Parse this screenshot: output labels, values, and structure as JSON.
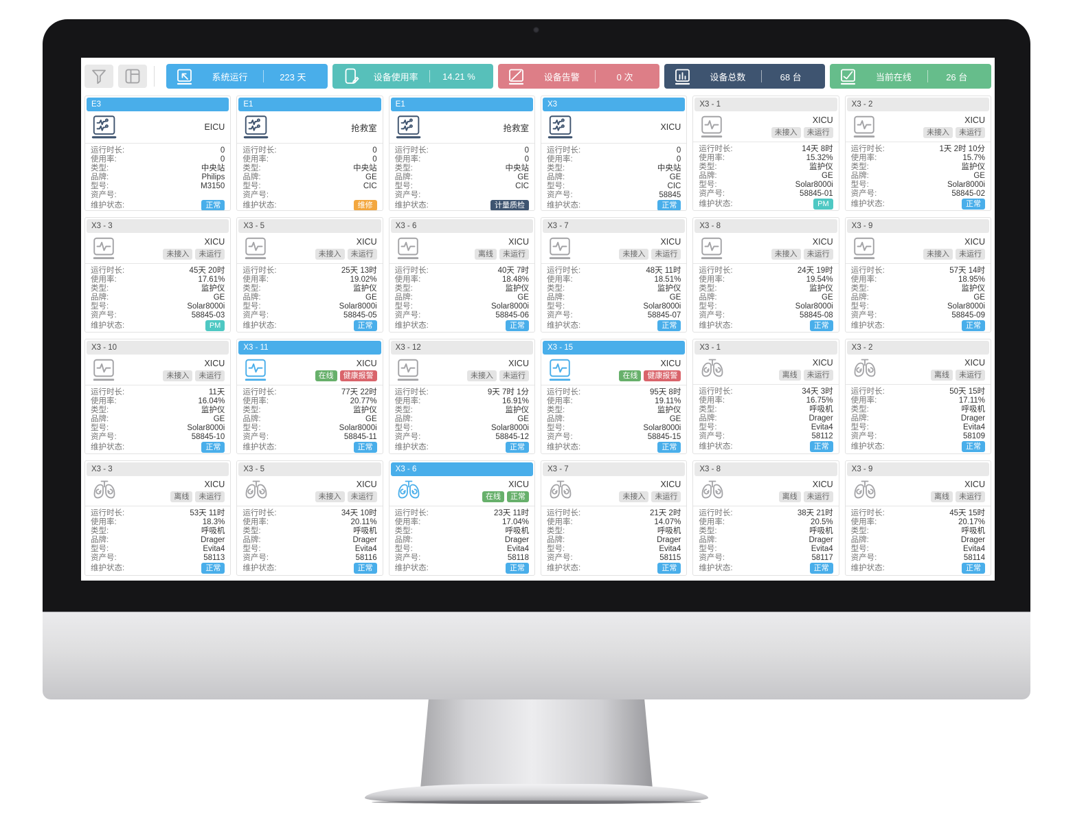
{
  "colors": {
    "accent_blue": "#49aeea",
    "stat_teal": "#57c0ba",
    "stat_red": "#dd7e87",
    "stat_navy": "#3e5470",
    "stat_green": "#66bd8b",
    "badge_green": "#67b06b",
    "badge_red": "#d9646b",
    "badge_grey": "#e4e4e4",
    "maint_blue": "#49aeea",
    "maint_teal": "#4ec8c3",
    "maint_orange": "#f3a73f",
    "maint_navy": "#3e5470"
  },
  "toolbar": {
    "left_buttons": [
      "filter-icon",
      "layout-grid-icon"
    ],
    "stats": [
      {
        "label": "系统运行",
        "value": "223 天",
        "color": "#49aeea",
        "icon": "monitor-cursor-icon"
      },
      {
        "label": "设备使用率",
        "value": "14.21 %",
        "color": "#57c0ba",
        "icon": "tablet-edit-icon"
      },
      {
        "label": "设备告警",
        "value": "0 次",
        "color": "#dd7e87",
        "icon": "monitor-slash-icon"
      },
      {
        "label": "设备总数",
        "value": "68 台",
        "color": "#3e5470",
        "icon": "monitor-bars-icon"
      },
      {
        "label": "当前在线",
        "value": "26 台",
        "color": "#66bd8b",
        "icon": "monitor-check-icon"
      }
    ]
  },
  "field_labels": {
    "runtime": "运行时长:",
    "usage": "使用率:",
    "type": "类型:",
    "brand": "品牌:",
    "model": "型号:",
    "asset": "资产号:",
    "maintenance": "维护状态:"
  },
  "cards": [
    {
      "id": "E3",
      "header_active": true,
      "location": "EICU",
      "device": "central",
      "icon_active": false,
      "status_badges": [],
      "runtime": "0",
      "usage": "0",
      "type": "中央站",
      "brand": "Philips",
      "model": "M3150",
      "asset": "",
      "maintenance": {
        "text": "正常",
        "style": "blue"
      }
    },
    {
      "id": "E1",
      "header_active": true,
      "location": "抢救室",
      "device": "central",
      "icon_active": false,
      "status_badges": [],
      "runtime": "0",
      "usage": "0",
      "type": "中央站",
      "brand": "GE",
      "model": "CIC",
      "asset": "",
      "maintenance": {
        "text": "维修",
        "style": "orange"
      }
    },
    {
      "id": "E1",
      "header_active": true,
      "location": "抢救室",
      "device": "central",
      "icon_active": false,
      "status_badges": [],
      "runtime": "0",
      "usage": "0",
      "type": "中央站",
      "brand": "GE",
      "model": "CIC",
      "asset": "",
      "maintenance": {
        "text": "计量质检",
        "style": "navy"
      }
    },
    {
      "id": "X3",
      "header_active": true,
      "location": "XICU",
      "device": "central",
      "icon_active": false,
      "status_badges": [],
      "runtime": "0",
      "usage": "0",
      "type": "中央站",
      "brand": "GE",
      "model": "CIC",
      "asset": "58845",
      "maintenance": {
        "text": "正常",
        "style": "blue"
      }
    },
    {
      "id": "X3 - 1",
      "header_active": false,
      "location": "XICU",
      "device": "monitor",
      "icon_active": false,
      "status_badges": [
        {
          "text": "未接入",
          "style": "grey"
        },
        {
          "text": "未运行",
          "style": "grey"
        }
      ],
      "runtime": "14天 8时",
      "usage": "15.32%",
      "type": "监护仪",
      "brand": "GE",
      "model": "Solar8000i",
      "asset": "58845-01",
      "maintenance": {
        "text": "PM",
        "style": "teal"
      }
    },
    {
      "id": "X3 - 2",
      "header_active": false,
      "location": "XICU",
      "device": "monitor",
      "icon_active": false,
      "status_badges": [
        {
          "text": "未接入",
          "style": "grey"
        },
        {
          "text": "未运行",
          "style": "grey"
        }
      ],
      "runtime": "1天 2时 10分",
      "usage": "15.7%",
      "type": "监护仪",
      "brand": "GE",
      "model": "Solar8000i",
      "asset": "58845-02",
      "maintenance": {
        "text": "正常",
        "style": "blue"
      }
    },
    {
      "id": "X3 - 3",
      "header_active": false,
      "location": "XICU",
      "device": "monitor",
      "icon_active": false,
      "status_badges": [
        {
          "text": "未接入",
          "style": "grey"
        },
        {
          "text": "未运行",
          "style": "grey"
        }
      ],
      "runtime": "45天 20时",
      "usage": "17.61%",
      "type": "监护仪",
      "brand": "GE",
      "model": "Solar8000i",
      "asset": "58845-03",
      "maintenance": {
        "text": "PM",
        "style": "teal"
      }
    },
    {
      "id": "X3 - 5",
      "header_active": false,
      "location": "XICU",
      "device": "monitor",
      "icon_active": false,
      "status_badges": [
        {
          "text": "未接入",
          "style": "grey"
        },
        {
          "text": "未运行",
          "style": "grey"
        }
      ],
      "runtime": "25天 13时",
      "usage": "19.02%",
      "type": "监护仪",
      "brand": "GE",
      "model": "Solar8000i",
      "asset": "58845-05",
      "maintenance": {
        "text": "正常",
        "style": "blue"
      }
    },
    {
      "id": "X3 - 6",
      "header_active": false,
      "location": "XICU",
      "device": "monitor",
      "icon_active": false,
      "status_badges": [
        {
          "text": "离线",
          "style": "grey"
        },
        {
          "text": "未运行",
          "style": "grey"
        }
      ],
      "runtime": "40天 7时",
      "usage": "18.48%",
      "type": "监护仪",
      "brand": "GE",
      "model": "Solar8000i",
      "asset": "58845-06",
      "maintenance": {
        "text": "正常",
        "style": "blue"
      }
    },
    {
      "id": "X3 - 7",
      "header_active": false,
      "location": "XICU",
      "device": "monitor",
      "icon_active": false,
      "status_badges": [
        {
          "text": "未接入",
          "style": "grey"
        },
        {
          "text": "未运行",
          "style": "grey"
        }
      ],
      "runtime": "48天 11时",
      "usage": "18.51%",
      "type": "监护仪",
      "brand": "GE",
      "model": "Solar8000i",
      "asset": "58845-07",
      "maintenance": {
        "text": "正常",
        "style": "blue"
      }
    },
    {
      "id": "X3 - 8",
      "header_active": false,
      "location": "XICU",
      "device": "monitor",
      "icon_active": false,
      "status_badges": [
        {
          "text": "未接入",
          "style": "grey"
        },
        {
          "text": "未运行",
          "style": "grey"
        }
      ],
      "runtime": "24天 19时",
      "usage": "19.54%",
      "type": "监护仪",
      "brand": "GE",
      "model": "Solar8000i",
      "asset": "58845-08",
      "maintenance": {
        "text": "正常",
        "style": "blue"
      }
    },
    {
      "id": "X3 - 9",
      "header_active": false,
      "location": "XICU",
      "device": "monitor",
      "icon_active": false,
      "status_badges": [
        {
          "text": "未接入",
          "style": "grey"
        },
        {
          "text": "未运行",
          "style": "grey"
        }
      ],
      "runtime": "57天 14时",
      "usage": "18.95%",
      "type": "监护仪",
      "brand": "GE",
      "model": "Solar8000i",
      "asset": "58845-09",
      "maintenance": {
        "text": "正常",
        "style": "blue"
      }
    },
    {
      "id": "X3 - 10",
      "header_active": false,
      "location": "XICU",
      "device": "monitor",
      "icon_active": false,
      "status_badges": [
        {
          "text": "未接入",
          "style": "grey"
        },
        {
          "text": "未运行",
          "style": "grey"
        }
      ],
      "runtime": "11天",
      "usage": "16.04%",
      "type": "监护仪",
      "brand": "GE",
      "model": "Solar8000i",
      "asset": "58845-10",
      "maintenance": {
        "text": "正常",
        "style": "blue"
      }
    },
    {
      "id": "X3 - 11",
      "header_active": true,
      "location": "XICU",
      "device": "monitor",
      "icon_active": true,
      "status_badges": [
        {
          "text": "在线",
          "style": "green"
        },
        {
          "text": "健康报警",
          "style": "red"
        }
      ],
      "runtime": "77天 22时",
      "usage": "20.77%",
      "type": "监护仪",
      "brand": "GE",
      "model": "Solar8000i",
      "asset": "58845-11",
      "maintenance": {
        "text": "正常",
        "style": "blue"
      }
    },
    {
      "id": "X3 - 12",
      "header_active": false,
      "location": "XICU",
      "device": "monitor",
      "icon_active": false,
      "status_badges": [
        {
          "text": "未接入",
          "style": "grey"
        },
        {
          "text": "未运行",
          "style": "grey"
        }
      ],
      "runtime": "9天 7时 1分",
      "usage": "16.91%",
      "type": "监护仪",
      "brand": "GE",
      "model": "Solar8000i",
      "asset": "58845-12",
      "maintenance": {
        "text": "正常",
        "style": "blue"
      }
    },
    {
      "id": "X3 - 15",
      "header_active": true,
      "location": "XICU",
      "device": "monitor",
      "icon_active": true,
      "status_badges": [
        {
          "text": "在线",
          "style": "green"
        },
        {
          "text": "健康报警",
          "style": "red"
        }
      ],
      "runtime": "95天 8时",
      "usage": "19.11%",
      "type": "监护仪",
      "brand": "GE",
      "model": "Solar8000i",
      "asset": "58845-15",
      "maintenance": {
        "text": "正常",
        "style": "blue"
      }
    },
    {
      "id": "X3 - 1",
      "header_active": false,
      "location": "XICU",
      "device": "ventilator",
      "icon_active": false,
      "status_badges": [
        {
          "text": "离线",
          "style": "grey"
        },
        {
          "text": "未运行",
          "style": "grey"
        }
      ],
      "runtime": "34天 3时",
      "usage": "16.75%",
      "type": "呼吸机",
      "brand": "Drager",
      "model": "Evita4",
      "asset": "58112",
      "maintenance": {
        "text": "正常",
        "style": "blue"
      }
    },
    {
      "id": "X3 - 2",
      "header_active": false,
      "location": "XICU",
      "device": "ventilator",
      "icon_active": false,
      "status_badges": [
        {
          "text": "离线",
          "style": "grey"
        },
        {
          "text": "未运行",
          "style": "grey"
        }
      ],
      "runtime": "50天 15时",
      "usage": "17.11%",
      "type": "呼吸机",
      "brand": "Drager",
      "model": "Evita4",
      "asset": "58109",
      "maintenance": {
        "text": "正常",
        "style": "blue"
      }
    },
    {
      "id": "X3 - 3",
      "header_active": false,
      "location": "XICU",
      "device": "ventilator",
      "icon_active": false,
      "status_badges": [
        {
          "text": "离线",
          "style": "grey"
        },
        {
          "text": "未运行",
          "style": "grey"
        }
      ],
      "runtime": "53天 11时",
      "usage": "18.3%",
      "type": "呼吸机",
      "brand": "Drager",
      "model": "Evita4",
      "asset": "58113",
      "maintenance": {
        "text": "正常",
        "style": "blue"
      }
    },
    {
      "id": "X3 - 5",
      "header_active": false,
      "location": "XICU",
      "device": "ventilator",
      "icon_active": false,
      "status_badges": [
        {
          "text": "未接入",
          "style": "grey"
        },
        {
          "text": "未运行",
          "style": "grey"
        }
      ],
      "runtime": "34天 10时",
      "usage": "20.11%",
      "type": "呼吸机",
      "brand": "Drager",
      "model": "Evita4",
      "asset": "58116",
      "maintenance": {
        "text": "正常",
        "style": "blue"
      }
    },
    {
      "id": "X3 - 6",
      "header_active": true,
      "location": "XICU",
      "device": "ventilator",
      "icon_active": true,
      "status_badges": [
        {
          "text": "在线",
          "style": "green"
        },
        {
          "text": "正常",
          "style": "green"
        }
      ],
      "runtime": "23天 11时",
      "usage": "17.04%",
      "type": "呼吸机",
      "brand": "Drager",
      "model": "Evita4",
      "asset": "58118",
      "maintenance": {
        "text": "正常",
        "style": "blue"
      }
    },
    {
      "id": "X3 - 7",
      "header_active": false,
      "location": "XICU",
      "device": "ventilator",
      "icon_active": false,
      "status_badges": [
        {
          "text": "未接入",
          "style": "grey"
        },
        {
          "text": "未运行",
          "style": "grey"
        }
      ],
      "runtime": "21天 2时",
      "usage": "14.07%",
      "type": "呼吸机",
      "brand": "Drager",
      "model": "Evita4",
      "asset": "58115",
      "maintenance": {
        "text": "正常",
        "style": "blue"
      }
    },
    {
      "id": "X3 - 8",
      "header_active": false,
      "location": "XICU",
      "device": "ventilator",
      "icon_active": false,
      "status_badges": [
        {
          "text": "离线",
          "style": "grey"
        },
        {
          "text": "未运行",
          "style": "grey"
        }
      ],
      "runtime": "38天 21时",
      "usage": "20.5%",
      "type": "呼吸机",
      "brand": "Drager",
      "model": "Evita4",
      "asset": "58117",
      "maintenance": {
        "text": "正常",
        "style": "blue"
      }
    },
    {
      "id": "X3 - 9",
      "header_active": false,
      "location": "XICU",
      "device": "ventilator",
      "icon_active": false,
      "status_badges": [
        {
          "text": "离线",
          "style": "grey"
        },
        {
          "text": "未运行",
          "style": "grey"
        }
      ],
      "runtime": "45天 15时",
      "usage": "20.17%",
      "type": "呼吸机",
      "brand": "Drager",
      "model": "Evita4",
      "asset": "58114",
      "maintenance": {
        "text": "正常",
        "style": "blue"
      }
    }
  ]
}
